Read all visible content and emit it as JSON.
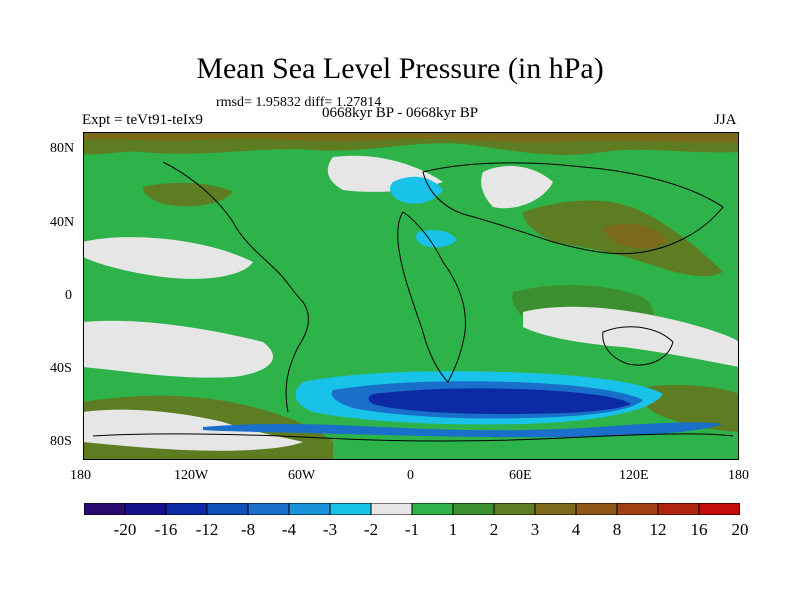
{
  "title": "Mean Sea Level Pressure (in hPa)",
  "stats": "rmsd= 1.95832 diff= 1.27814",
  "experiment": "Expt = teVt91-teIx9",
  "period": "0668kyr BP - 0668kyr BP",
  "season": "JJA",
  "axes": {
    "x_ticks": [
      "180",
      "120W",
      "60W",
      "0",
      "60E",
      "120E",
      "180"
    ],
    "y_ticks": [
      "80N",
      "40N",
      "0",
      "40S",
      "80S"
    ]
  },
  "colorbar": {
    "colors": [
      "#2b0a6e",
      "#150f8c",
      "#0d2aa5",
      "#0f4fba",
      "#1a6fcb",
      "#1a93d8",
      "#19c2e8",
      "#e6e6e6",
      "#2eb24a",
      "#3c8f2e",
      "#5e7d22",
      "#7a6a1a",
      "#8f5617",
      "#a04012",
      "#b0240e",
      "#c40d0b"
    ],
    "labels": [
      "-20",
      "-16",
      "-12",
      "-8",
      "-4",
      "-3",
      "-2",
      "-1",
      "1",
      "2",
      "3",
      "4",
      "8",
      "12",
      "16",
      "20"
    ]
  }
}
